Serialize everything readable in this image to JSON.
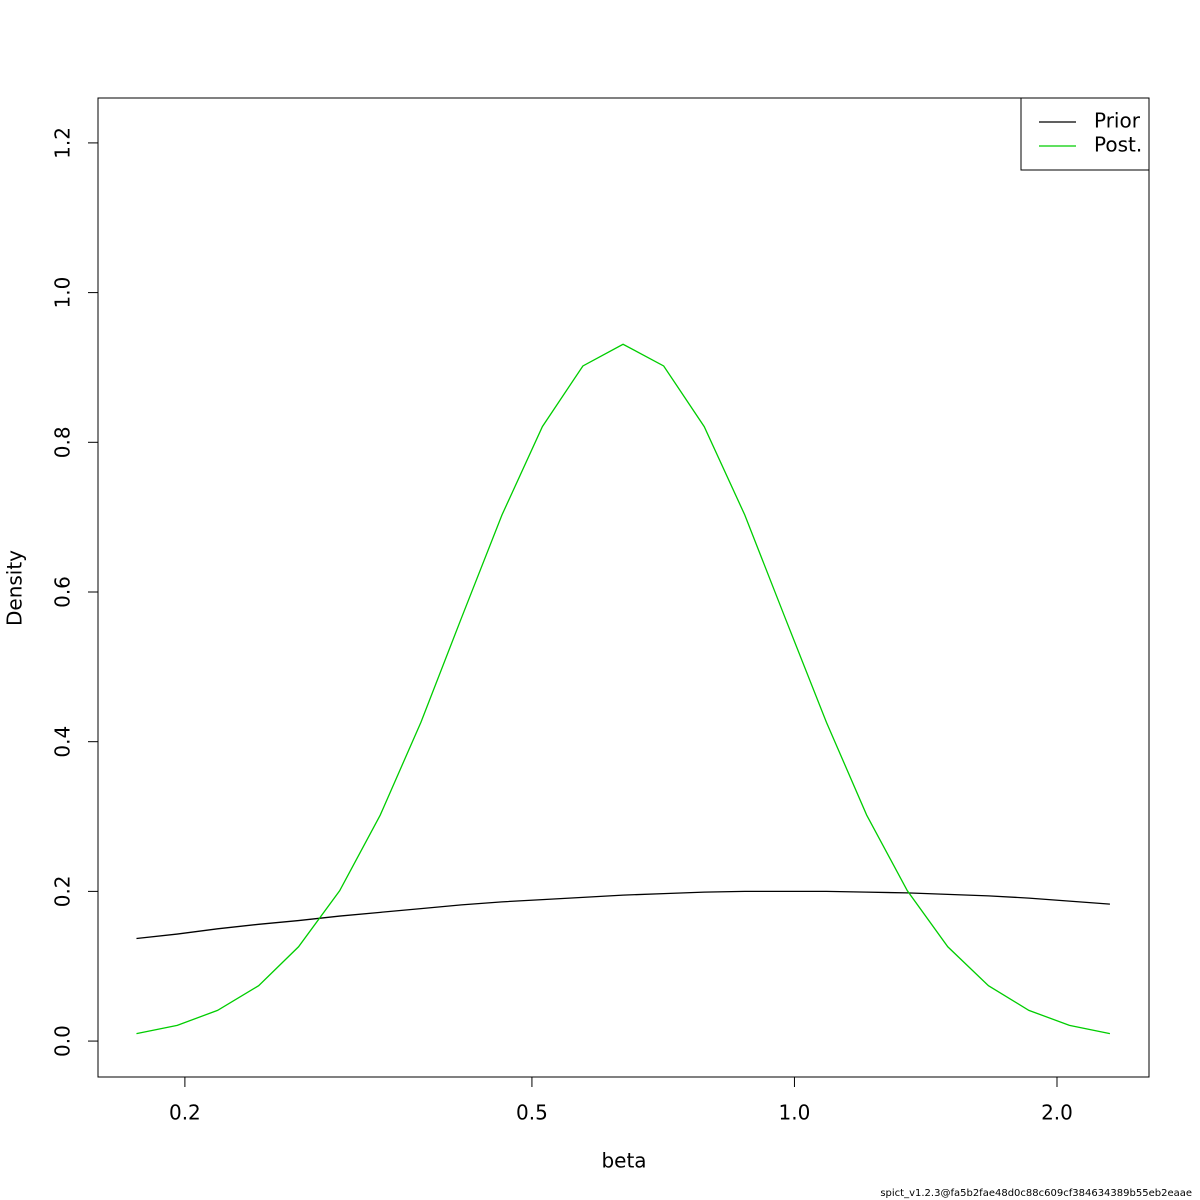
{
  "chart_data": {
    "type": "line",
    "x_label": "beta",
    "y_label": "Density",
    "footnote": "spict_v1.2.3@fa5b2fae48d0c88c609cf384634389b55eb2eaae",
    "x_log": true,
    "x": [
      0.176,
      0.196,
      0.218,
      0.243,
      0.27,
      0.301,
      0.335,
      0.373,
      0.415,
      0.462,
      0.514,
      0.572,
      0.636,
      0.708,
      0.788,
      0.877,
      0.976,
      1.088,
      1.21,
      1.347,
      1.499,
      1.669,
      1.857,
      2.067,
      2.3
    ],
    "series": [
      {
        "name": "Prior",
        "color": "#000000",
        "values": [
          0.137,
          0.143,
          0.15,
          0.156,
          0.161,
          0.167,
          0.172,
          0.177,
          0.182,
          0.186,
          0.189,
          0.192,
          0.195,
          0.197,
          0.199,
          0.2,
          0.2,
          0.2,
          0.199,
          0.198,
          0.196,
          0.194,
          0.191,
          0.187,
          0.183
        ]
      },
      {
        "name": "Post.",
        "color": "#00cd00",
        "values": [
          0.01,
          0.021,
          0.041,
          0.074,
          0.126,
          0.201,
          0.302,
          0.426,
          0.565,
          0.703,
          0.821,
          0.902,
          0.931,
          0.902,
          0.821,
          0.703,
          0.565,
          0.426,
          0.302,
          0.201,
          0.126,
          0.074,
          0.041,
          0.021,
          0.01
        ]
      }
    ],
    "xlim": [
      0.159,
      2.55
    ],
    "ylim": [
      -0.048,
      1.26
    ],
    "xticks": [
      0.2,
      0.5,
      {
        "value": 1,
        "label": "1.0"
      },
      {
        "value": 2,
        "label": "2.0"
      }
    ],
    "yticks": [
      {
        "value": 0,
        "label": "0.0"
      },
      0.2,
      0.4,
      0.6,
      0.8,
      {
        "value": 1,
        "label": "1.0"
      },
      1.2
    ],
    "legend": "top-right"
  }
}
